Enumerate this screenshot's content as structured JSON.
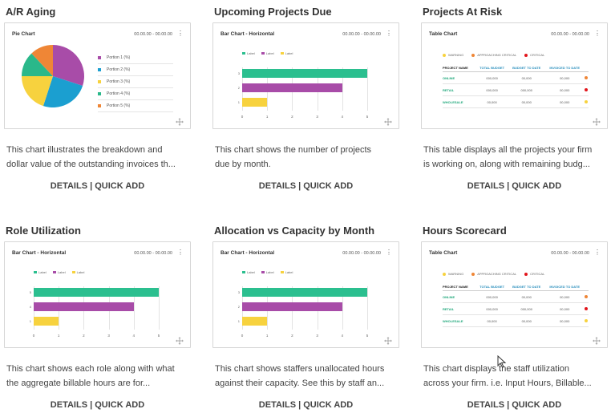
{
  "colors": {
    "pie": [
      "#a84ca8",
      "#1b9fd0",
      "#f7d23e",
      "#2ab88a",
      "#ef8636"
    ],
    "bars": [
      "#2bbf8f",
      "#a84ca8",
      "#f7d23e"
    ],
    "status": {
      "warning": "#f7d23e",
      "approaching": "#ef8636",
      "critical": "#e2151b"
    }
  },
  "widgets": [
    {
      "title": "A/R Aging",
      "card_title": "Pie Chart",
      "range": "00.00.00 - 00.00.00",
      "menu_icon": "vertical-dots-icon",
      "legend": [
        "Portion 1 (%)",
        "Portion 2 (%)",
        "Portion 3 (%)",
        "Portion 4 (%)",
        "Portion 5 (%)"
      ],
      "desc_line1": "This chart illustrates the breakdown and",
      "desc_line2": "dollar value of the outstanding invoices th...",
      "details": "DETAILS",
      "sep": " | ",
      "quick_add": "QUICK ADD"
    },
    {
      "title": "Upcoming Projects Due",
      "card_title": "Bar Chart - Horizontal",
      "range": "00.00.00 - 00.00.00",
      "legend": [
        "Label",
        "Label",
        "Label"
      ],
      "y_labels": [
        "3",
        "2",
        "1"
      ],
      "x_labels": [
        "0",
        "1",
        "2",
        "3",
        "4",
        "5"
      ],
      "desc_line1": "This chart shows the number of projects",
      "desc_line2": "due by month.",
      "details": "DETAILS",
      "sep": " | ",
      "quick_add": "QUICK ADD"
    },
    {
      "title": "Projects At Risk",
      "card_title": "Table Chart",
      "range": "00.00.00 - 00.00.00",
      "legend": [
        "WARNING",
        "APPROACHING CRITICAL",
        "CRITICAL"
      ],
      "headers": [
        "PROJECT NAME",
        "TOTAL BUDGET",
        "BUDGET TO DATE",
        "INVOICED TO DATE"
      ],
      "rows": [
        {
          "name": "ONLINE",
          "c1": "000,000",
          "c2": "00,000",
          "c3": "00,000",
          "status": "approaching"
        },
        {
          "name": "RETAIL",
          "c1": "000,000",
          "c2": "000,000",
          "c3": "00,000",
          "status": "critical"
        },
        {
          "name": "WHOLESALE",
          "c1": "00,000",
          "c2": "00,000",
          "c3": "00,000",
          "status": "warning"
        }
      ],
      "desc_line1": "This table displays all the projects your firm",
      "desc_line2": "is working on, along with remaining budg...",
      "details": "DETAILS",
      "sep": " | ",
      "quick_add": "QUICK ADD"
    },
    {
      "title": "Role Utilization",
      "card_title": "Bar Chart - Horizontal",
      "range": "00.00.00 - 00.00.00",
      "legend": [
        "Label",
        "Label",
        "Label"
      ],
      "y_labels": [
        "5",
        "4",
        "1"
      ],
      "x_labels": [
        "0",
        "1",
        "2",
        "3",
        "4",
        "5"
      ],
      "desc_line1": "This chart shows each role along with what",
      "desc_line2": "the aggregate billable hours are for...",
      "details": "DETAILS",
      "sep": " | ",
      "quick_add": "QUICK ADD"
    },
    {
      "title": "Allocation vs Capacity by Month",
      "card_title": "Bar Chart - Horizontal",
      "range": "00.00.00 - 00.00.00",
      "legend": [
        "Label",
        "Label",
        "Label"
      ],
      "y_labels": [
        "3",
        "2",
        "1"
      ],
      "x_labels": [
        "0",
        "1",
        "2",
        "3",
        "4",
        "5"
      ],
      "desc_line1": "This chart shows staffers unallocated hours",
      "desc_line2": "against their capacity. See this by staff an...",
      "details": "DETAILS",
      "sep": " | ",
      "quick_add": "QUICK ADD"
    },
    {
      "title": "Hours Scorecard",
      "card_title": "Table Chart",
      "range": "00.00.00 - 00.00.00",
      "legend": [
        "WARNING",
        "APPROACHING CRITICAL",
        "CRITICAL"
      ],
      "headers": [
        "PROJECT NAME",
        "TOTAL BUDGET",
        "BUDGET TO DATE",
        "INVOICED TO DATE"
      ],
      "rows": [
        {
          "name": "ONLINE",
          "c1": "000,000",
          "c2": "00,000",
          "c3": "00,000",
          "status": "approaching"
        },
        {
          "name": "RETAIL",
          "c1": "000,000",
          "c2": "000,000",
          "c3": "00,000",
          "status": "critical"
        },
        {
          "name": "WHOLESALE",
          "c1": "00,000",
          "c2": "00,000",
          "c3": "00,000",
          "status": "warning"
        }
      ],
      "desc_line1": "This chart displays the staff utilization",
      "desc_line2": "across your firm. i.e. Input Hours, Billable...",
      "details": "DETAILS",
      "sep": " | ",
      "quick_add": "QUICK ADD"
    }
  ],
  "chart_data": [
    {
      "type": "pie",
      "title": "Pie Chart",
      "series": [
        {
          "name": "Portions",
          "values": [
            30,
            25,
            20,
            13,
            12
          ]
        }
      ],
      "categories": [
        "Portion 1 (%)",
        "Portion 2 (%)",
        "Portion 3 (%)",
        "Portion 4 (%)",
        "Portion 5 (%)"
      ],
      "legend_position": "right"
    },
    {
      "type": "bar",
      "title": "Bar Chart - Horizontal",
      "orientation": "horizontal",
      "categories": [
        "3",
        "2",
        "1"
      ],
      "values": [
        5,
        4,
        1
      ],
      "xlim": [
        0,
        5
      ],
      "grid": true,
      "legend_position": "top-left"
    },
    {
      "type": "table",
      "title": "Table Chart",
      "columns": [
        "PROJECT NAME",
        "TOTAL BUDGET",
        "BUDGET TO DATE",
        "INVOICED TO DATE"
      ],
      "rows": [
        [
          "ONLINE",
          "000,000",
          "00,000",
          "00,000"
        ],
        [
          "RETAIL",
          "000,000",
          "000,000",
          "00,000"
        ],
        [
          "WHOLESALE",
          "00,000",
          "00,000",
          "00,000"
        ]
      ]
    },
    {
      "type": "bar",
      "title": "Bar Chart - Horizontal",
      "orientation": "horizontal",
      "categories": [
        "5",
        "4",
        "1"
      ],
      "values": [
        5,
        4,
        1
      ],
      "xlim": [
        0,
        5
      ],
      "grid": true,
      "legend_position": "top-left"
    },
    {
      "type": "bar",
      "title": "Bar Chart - Horizontal",
      "orientation": "horizontal",
      "categories": [
        "3",
        "2",
        "1"
      ],
      "values": [
        5,
        4,
        1
      ],
      "xlim": [
        0,
        5
      ],
      "grid": true,
      "legend_position": "top-left"
    },
    {
      "type": "table",
      "title": "Table Chart",
      "columns": [
        "PROJECT NAME",
        "TOTAL BUDGET",
        "BUDGET TO DATE",
        "INVOICED TO DATE"
      ],
      "rows": [
        [
          "ONLINE",
          "000,000",
          "00,000",
          "00,000"
        ],
        [
          "RETAIL",
          "000,000",
          "000,000",
          "00,000"
        ],
        [
          "WHOLESALE",
          "00,000",
          "00,000",
          "00,000"
        ]
      ]
    }
  ]
}
